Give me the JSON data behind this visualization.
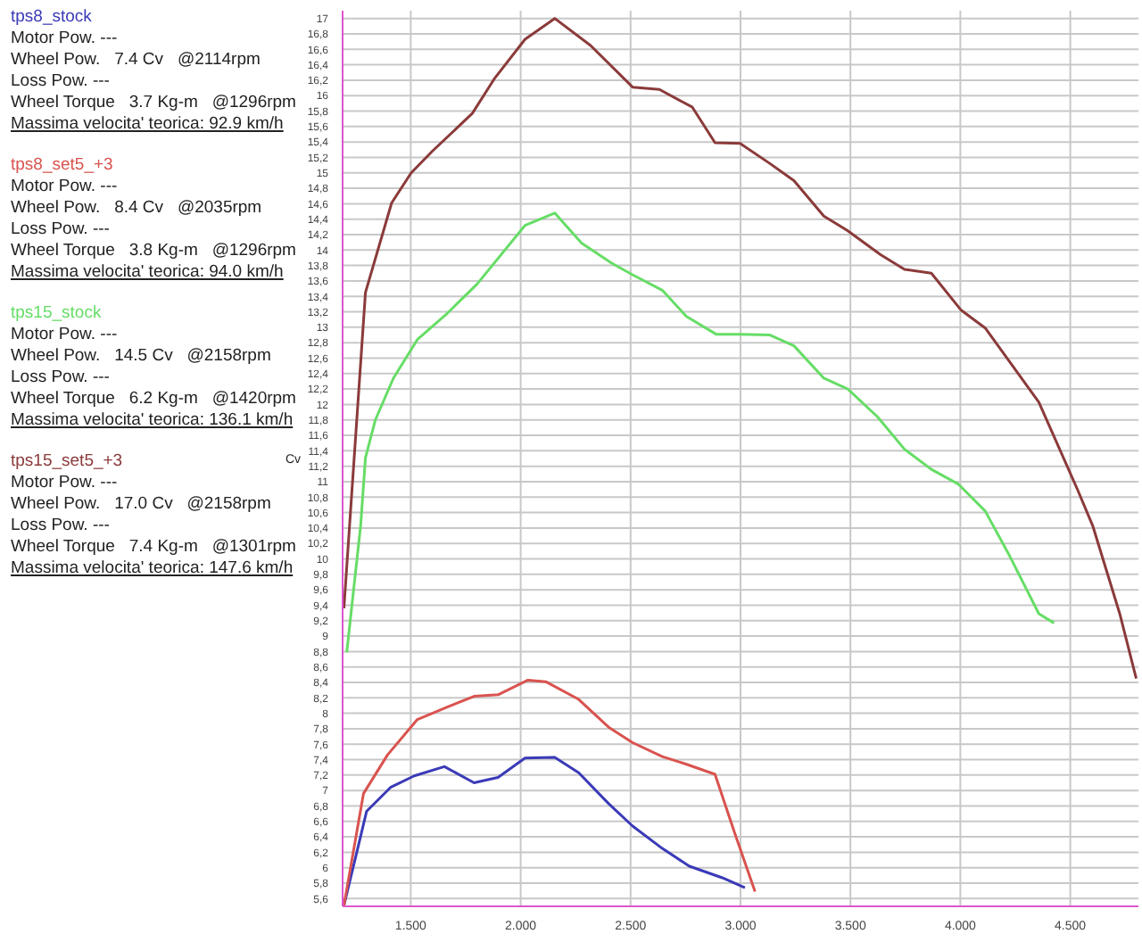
{
  "chart_data": {
    "type": "line",
    "ylabel": "Cv",
    "legend": "left",
    "grid": true,
    "marker": "none",
    "line_style": "solid",
    "xlim": [
      1190,
      4810
    ],
    "ylim": [
      5.5,
      17.1
    ],
    "xticks": [
      {
        "value": 1500,
        "label": "1.500"
      },
      {
        "value": 2000,
        "label": "2.000"
      },
      {
        "value": 2500,
        "label": "2.500"
      },
      {
        "value": 3000,
        "label": "3.000"
      },
      {
        "value": 3500,
        "label": "3.500"
      },
      {
        "value": 4000,
        "label": "4.000"
      },
      {
        "value": 4500,
        "label": "4.500"
      }
    ],
    "yticks": [
      {
        "value": 5.6,
        "label": "5,6"
      },
      {
        "value": 5.8,
        "label": "5,8"
      },
      6,
      {
        "value": 6.2,
        "label": "6,2"
      },
      {
        "value": 6.4,
        "label": "6,4"
      },
      {
        "value": 6.6,
        "label": "6,6"
      },
      {
        "value": 6.8,
        "label": "6,8"
      },
      7,
      {
        "value": 7.2,
        "label": "7,2"
      },
      {
        "value": 7.4,
        "label": "7,4"
      },
      {
        "value": 7.6,
        "label": "7,6"
      },
      {
        "value": 7.8,
        "label": "7,8"
      },
      8,
      {
        "value": 8.2,
        "label": "8,2"
      },
      {
        "value": 8.4,
        "label": "8,4"
      },
      {
        "value": 8.6,
        "label": "8,6"
      },
      {
        "value": 8.8,
        "label": "8,8"
      },
      9,
      {
        "value": 9.2,
        "label": "9,2"
      },
      {
        "value": 9.4,
        "label": "9,4"
      },
      {
        "value": 9.6,
        "label": "9,6"
      },
      {
        "value": 9.8,
        "label": "9,8"
      },
      10,
      {
        "value": 10.2,
        "label": "10,2"
      },
      {
        "value": 10.4,
        "label": "10,4"
      },
      {
        "value": 10.6,
        "label": "10,6"
      },
      {
        "value": 10.8,
        "label": "10,8"
      },
      11,
      {
        "value": 11.2,
        "label": "11,2"
      },
      {
        "value": 11.4,
        "label": "11,4"
      },
      {
        "value": 11.6,
        "label": "11,6"
      },
      {
        "value": 11.8,
        "label": "11,8"
      },
      12,
      {
        "value": 12.2,
        "label": "12,2"
      },
      {
        "value": 12.4,
        "label": "12,4"
      },
      {
        "value": 12.6,
        "label": "12,6"
      },
      {
        "value": 12.8,
        "label": "12,8"
      },
      13,
      {
        "value": 13.2,
        "label": "13,2"
      },
      {
        "value": 13.4,
        "label": "13,4"
      },
      {
        "value": 13.6,
        "label": "13,6"
      },
      {
        "value": 13.8,
        "label": "13,8"
      },
      14,
      {
        "value": 14.2,
        "label": "14,2"
      },
      {
        "value": 14.4,
        "label": "14,4"
      },
      {
        "value": 14.6,
        "label": "14,6"
      },
      {
        "value": 14.8,
        "label": "14,8"
      },
      15,
      {
        "value": 15.2,
        "label": "15,2"
      },
      {
        "value": 15.4,
        "label": "15,4"
      },
      {
        "value": 15.6,
        "label": "15,6"
      },
      {
        "value": 15.8,
        "label": "15,8"
      },
      16,
      {
        "value": 16.2,
        "label": "16,2"
      },
      {
        "value": 16.4,
        "label": "16,4"
      },
      {
        "value": 16.6,
        "label": "16,6"
      },
      {
        "value": 16.8,
        "label": "16,8"
      },
      17
    ],
    "series": [
      {
        "name": "tps8_stock",
        "color": "#3a3ab8",
        "x": [
          1196,
          1258,
          1299,
          1408,
          1516,
          1653,
          1788,
          1897,
          2020,
          2155,
          2264,
          2400,
          2509,
          2644,
          2767,
          2917,
          3020
        ],
        "values": [
          5.51,
          6.24,
          6.73,
          7.04,
          7.19,
          7.31,
          7.1,
          7.17,
          7.42,
          7.43,
          7.23,
          6.83,
          6.54,
          6.25,
          6.02,
          5.87,
          5.74
        ]
      },
      {
        "name": "tps8_set5_+3",
        "color": "#d9534f",
        "x": [
          1196,
          1285,
          1394,
          1530,
          1666,
          1788,
          1897,
          2033,
          2114,
          2264,
          2400,
          2509,
          2644,
          2754,
          2884,
          2971,
          3066
        ],
        "values": [
          5.51,
          6.96,
          7.46,
          7.92,
          8.08,
          8.22,
          8.24,
          8.43,
          8.41,
          8.18,
          7.82,
          7.62,
          7.44,
          7.34,
          7.21,
          6.47,
          5.69
        ]
      },
      {
        "name": "tps15_stock",
        "color": "#66dd66",
        "x": [
          1209,
          1272,
          1294,
          1339,
          1421,
          1530,
          1666,
          1802,
          2020,
          2155,
          2277,
          2414,
          2509,
          2644,
          2754,
          2889,
          2998,
          3134,
          3243,
          3379,
          3488,
          3623,
          3746,
          3868,
          3990,
          4113,
          4222,
          4357,
          4426
        ],
        "values": [
          8.79,
          10.43,
          11.31,
          11.8,
          12.34,
          12.84,
          13.18,
          13.56,
          14.32,
          14.48,
          14.09,
          13.83,
          13.68,
          13.48,
          13.14,
          12.91,
          12.91,
          12.9,
          12.76,
          12.34,
          12.2,
          11.84,
          11.42,
          11.16,
          10.97,
          10.62,
          10.05,
          9.29,
          9.17
        ]
      },
      {
        "name": "tps15_set5_+3",
        "color": "#8b3a3a",
        "x": [
          1196,
          1294,
          1413,
          1502,
          1598,
          1780,
          1883,
          2020,
          2155,
          2318,
          2509,
          2631,
          2781,
          2884,
          2998,
          3134,
          3243,
          3379,
          3488,
          3637,
          3746,
          3868,
          4004,
          4113,
          4357,
          4534,
          4602,
          4725,
          4800
        ],
        "values": [
          9.36,
          13.45,
          14.61,
          15.0,
          15.28,
          15.77,
          16.23,
          16.73,
          17.0,
          16.65,
          16.11,
          16.08,
          15.85,
          15.39,
          15.38,
          15.12,
          14.9,
          14.44,
          14.25,
          13.94,
          13.75,
          13.7,
          13.22,
          12.99,
          12.03,
          10.89,
          10.43,
          9.29,
          8.45
        ]
      }
    ],
    "annotations": [
      "Motor Pow. ---",
      "Wheel Pow.   7.4 Cv   @2114rpm",
      "Loss Pow. ---",
      "Wheel Torque   3.7 Kg-m   @1296rpm",
      "Massima velocita' teorica: 92.9 km/h",
      "Motor Pow. ---",
      "Wheel Pow.   8.4 Cv   @2035rpm",
      "Loss Pow. ---",
      "Wheel Torque   3.8 Kg-m   @1296rpm",
      "Massima velocita' teorica: 94.0 km/h",
      "Motor Pow. ---",
      "Wheel Pow.   14.5 Cv   @2158rpm",
      "Loss Pow. ---",
      "Wheel Torque   6.2 Kg-m   @1420rpm",
      "Massima velocita' teorica: 136.1 km/h",
      "Motor Pow. ---",
      "Wheel Pow.   17.0 Cv   @2158rpm",
      "Loss Pow. ---",
      "Wheel Torque   7.4 Kg-m   @1301rpm",
      "Massima velocita' teorica: 147.6 km/h"
    ]
  }
}
